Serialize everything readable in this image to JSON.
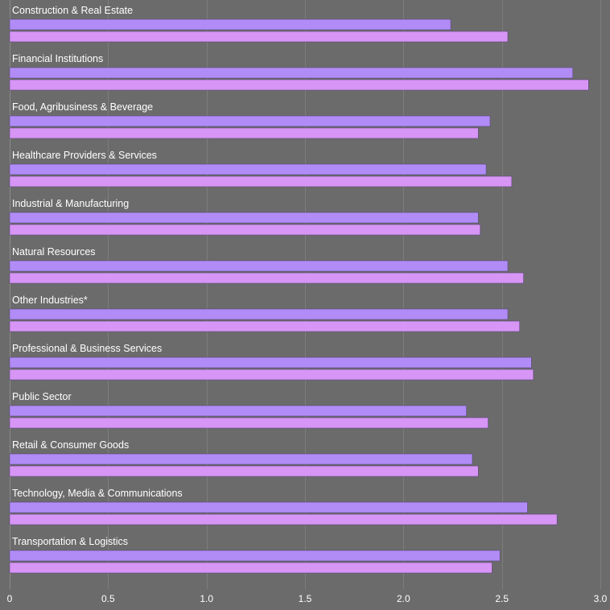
{
  "chart_data": {
    "type": "bar",
    "orientation": "horizontal",
    "categories": [
      "Construction & Real Estate",
      "Financial Institutions",
      "Food, Agribusiness & Beverage",
      "Healthcare Providers & Services",
      "Industrial & Manufacturing",
      "Natural Resources",
      "Other Industries*",
      "Professional & Business Services",
      "Public Sector",
      "Retail & Consumer Goods",
      "Technology, Media & Communications",
      "Transportation & Logistics"
    ],
    "series": [
      {
        "values": [
          2.24,
          2.86,
          2.44,
          2.42,
          2.38,
          2.53,
          2.53,
          2.65,
          2.32,
          2.35,
          2.63,
          2.49
        ]
      },
      {
        "values": [
          2.53,
          2.94,
          2.38,
          2.55,
          2.39,
          2.61,
          2.59,
          2.66,
          2.43,
          2.38,
          2.78,
          2.45
        ]
      }
    ],
    "xlim": [
      0,
      3.0
    ],
    "ticks": [
      "0",
      "0.5",
      "1.0",
      "1.5",
      "2.0",
      "2.5",
      "3.0"
    ],
    "tick_values": [
      0,
      0.5,
      1.0,
      1.5,
      2.0,
      2.5,
      3.0
    ],
    "grid": true,
    "colors": {
      "background": "#6b6b6b",
      "series_1": "#b18cf7",
      "series_2": "#d795f5",
      "grid": "#7d7d7d",
      "text": "#ffffff"
    }
  }
}
